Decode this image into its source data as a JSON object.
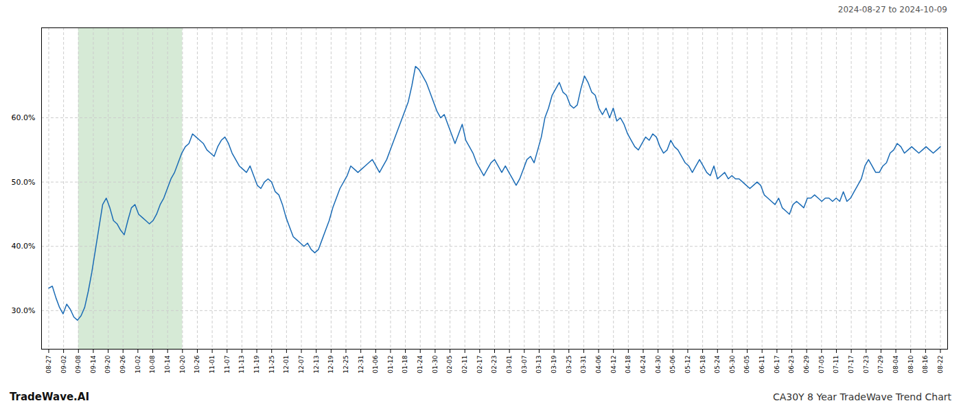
{
  "chart_data": {
    "type": "line",
    "title": "CA30Y 8 Year TradeWave Trend Chart",
    "subtitle": "2024-08-27 to 2024-10-09",
    "annotation": "TradeWave.AI",
    "color": "#1a6bb5",
    "grid": true,
    "highlight_range": [
      8.266666666666667,
      37.2
    ],
    "highlight_color": "#d6ead6",
    "xlim": [
      -2,
      250
    ],
    "xticks": [
      {
        "value": 0,
        "label": "08-27"
      },
      {
        "value": 4.133333333333333,
        "label": "09-02"
      },
      {
        "value": 8.266666666666667,
        "label": "09-08"
      },
      {
        "value": 12.4,
        "label": "09-14"
      },
      {
        "value": 16.53333333333333,
        "label": "09-20"
      },
      {
        "value": 20.666666666666668,
        "label": "09-26"
      },
      {
        "value": 24.8,
        "label": "10-02"
      },
      {
        "value": 28.933333333333334,
        "label": "10-08"
      },
      {
        "value": 33.06666666666667,
        "label": "10-14"
      },
      {
        "value": 37.2,
        "label": "10-20"
      },
      {
        "value": 41.333333333333336,
        "label": "10-26"
      },
      {
        "value": 45.46666666666667,
        "label": "11-01"
      },
      {
        "value": 49.6,
        "label": "11-07"
      },
      {
        "value": 53.733333333333334,
        "label": "11-13"
      },
      {
        "value": 57.86666666666667,
        "label": "11-19"
      },
      {
        "value": 62,
        "label": "11-25"
      },
      {
        "value": 66.13333333333334,
        "label": "12-01"
      },
      {
        "value": 70.26666666666667,
        "label": "12-07"
      },
      {
        "value": 74.4,
        "label": "12-13"
      },
      {
        "value": 78.53333333333333,
        "label": "12-19"
      },
      {
        "value": 82.66666666666667,
        "label": "12-25"
      },
      {
        "value": 86.8,
        "label": "12-31"
      },
      {
        "value": 90.93333333333334,
        "label": "01-06"
      },
      {
        "value": 95.06666666666666,
        "label": "01-12"
      },
      {
        "value": 99.2,
        "label": "01-18"
      },
      {
        "value": 103.33333333333333,
        "label": "01-24"
      },
      {
        "value": 107.46666666666667,
        "label": "01-30"
      },
      {
        "value": 111.6,
        "label": "02-05"
      },
      {
        "value": 115.73333333333333,
        "label": "02-11"
      },
      {
        "value": 119.86666666666667,
        "label": "02-17"
      },
      {
        "value": 124,
        "label": "02-23"
      },
      {
        "value": 128.13333333333333,
        "label": "03-01"
      },
      {
        "value": 132.26666666666668,
        "label": "03-07"
      },
      {
        "value": 136.4,
        "label": "03-13"
      },
      {
        "value": 140.53333333333333,
        "label": "03-19"
      },
      {
        "value": 144.66666666666666,
        "label": "03-25"
      },
      {
        "value": 148.8,
        "label": "03-31"
      },
      {
        "value": 152.93333333333334,
        "label": "04-06"
      },
      {
        "value": 157.06666666666666,
        "label": "04-12"
      },
      {
        "value": 161.2,
        "label": "04-18"
      },
      {
        "value": 165.33333333333334,
        "label": "04-24"
      },
      {
        "value": 169.46666666666667,
        "label": "04-30"
      },
      {
        "value": 173.6,
        "label": "05-06"
      },
      {
        "value": 177.73333333333332,
        "label": "05-12"
      },
      {
        "value": 181.86666666666667,
        "label": "05-18"
      },
      {
        "value": 186,
        "label": "05-24"
      },
      {
        "value": 190.13333333333333,
        "label": "05-30"
      },
      {
        "value": 194.26666666666668,
        "label": "06-05"
      },
      {
        "value": 198.4,
        "label": "06-11"
      },
      {
        "value": 202.53333333333333,
        "label": "06-17"
      },
      {
        "value": 206.66666666666666,
        "label": "06-23"
      },
      {
        "value": 210.8,
        "label": "06-29"
      },
      {
        "value": 214.93333333333334,
        "label": "07-05"
      },
      {
        "value": 219.06666666666666,
        "label": "07-11"
      },
      {
        "value": 223.2,
        "label": "07-17"
      },
      {
        "value": 227.33333333333334,
        "label": "07-23"
      },
      {
        "value": 231.46666666666667,
        "label": "07-29"
      },
      {
        "value": 235.6,
        "label": "08-04"
      },
      {
        "value": 239.73333333333332,
        "label": "08-10"
      },
      {
        "value": 243.86666666666667,
        "label": "08-16"
      },
      {
        "value": 248,
        "label": "08-22"
      }
    ],
    "ylim": [
      24.0,
      74.0
    ],
    "yticks": [
      {
        "value": 30.0,
        "label": "30.0%"
      },
      {
        "value": 40.0,
        "label": "40.0%"
      },
      {
        "value": 50.0,
        "label": "50.0%"
      },
      {
        "value": 60.0,
        "label": "60.0%"
      }
    ],
    "x": [
      0,
      1,
      2,
      3,
      4,
      5,
      6,
      7,
      8,
      9,
      10,
      11,
      12,
      13,
      14,
      15,
      16,
      17,
      18,
      19,
      20,
      21,
      22,
      23,
      24,
      25,
      26,
      27,
      28,
      29,
      30,
      31,
      32,
      33,
      34,
      35,
      36,
      37,
      38,
      39,
      40,
      41,
      42,
      43,
      44,
      45,
      46,
      47,
      48,
      49,
      50,
      51,
      52,
      53,
      54,
      55,
      56,
      57,
      58,
      59,
      60,
      61,
      62,
      63,
      64,
      65,
      66,
      67,
      68,
      69,
      70,
      71,
      72,
      73,
      74,
      75,
      76,
      77,
      78,
      79,
      80,
      81,
      82,
      83,
      84,
      85,
      86,
      87,
      88,
      89,
      90,
      91,
      92,
      93,
      94,
      95,
      96,
      97,
      98,
      99,
      100,
      101,
      102,
      103,
      104,
      105,
      106,
      107,
      108,
      109,
      110,
      111,
      112,
      113,
      114,
      115,
      116,
      117,
      118,
      119,
      120,
      121,
      122,
      123,
      124,
      125,
      126,
      127,
      128,
      129,
      130,
      131,
      132,
      133,
      134,
      135,
      136,
      137,
      138,
      139,
      140,
      141,
      142,
      143,
      144,
      145,
      146,
      147,
      148,
      149,
      150,
      151,
      152,
      153,
      154,
      155,
      156,
      157,
      158,
      159,
      160,
      161,
      162,
      163,
      164,
      165,
      166,
      167,
      168,
      169,
      170,
      171,
      172,
      173,
      174,
      175,
      176,
      177,
      178,
      179,
      180,
      181,
      182,
      183,
      184,
      185,
      186,
      187,
      188,
      189,
      190,
      191,
      192,
      193,
      194,
      195,
      196,
      197,
      198,
      199,
      200,
      201,
      202,
      203,
      204,
      205,
      206,
      207,
      208,
      209,
      210,
      211,
      212,
      213,
      214,
      215,
      216,
      217,
      218,
      219,
      220,
      221,
      222,
      223,
      224,
      225,
      226,
      227,
      228,
      229,
      230,
      231,
      232,
      233,
      234,
      235,
      236,
      237,
      238,
      239,
      240,
      241,
      242,
      243,
      244,
      245,
      246,
      247,
      248
    ],
    "values": [
      33.5,
      33.8,
      32.0,
      30.5,
      29.5,
      31.0,
      30.2,
      29.0,
      28.5,
      29.2,
      30.5,
      33.0,
      36.0,
      39.5,
      43.0,
      46.5,
      47.5,
      46.0,
      44.0,
      43.5,
      42.5,
      41.8,
      44.0,
      46.0,
      46.5,
      45.0,
      44.5,
      44.0,
      43.5,
      44.0,
      45.0,
      46.5,
      47.5,
      49.0,
      50.5,
      51.5,
      53.0,
      54.5,
      55.5,
      56.0,
      57.5,
      57.0,
      56.5,
      56.0,
      55.0,
      54.5,
      54.0,
      55.5,
      56.5,
      57.0,
      56.0,
      54.5,
      53.5,
      52.5,
      52.0,
      51.5,
      52.5,
      51.0,
      49.5,
      49.0,
      50.0,
      50.5,
      50.0,
      48.5,
      48.0,
      46.5,
      44.5,
      43.0,
      41.5,
      41.0,
      40.5,
      40.0,
      40.5,
      39.5,
      39.0,
      39.5,
      41.0,
      42.5,
      44.0,
      46.0,
      47.5,
      49.0,
      50.0,
      51.0,
      52.5,
      52.0,
      51.5,
      52.0,
      52.5,
      53.0,
      53.5,
      52.5,
      51.5,
      52.5,
      53.5,
      55.0,
      56.5,
      58.0,
      59.5,
      61.0,
      62.5,
      65.0,
      68.0,
      67.5,
      66.5,
      65.5,
      64.0,
      62.5,
      61.0,
      60.0,
      60.5,
      59.0,
      57.5,
      56.0,
      57.5,
      59.0,
      56.5,
      55.5,
      54.5,
      53.0,
      52.0,
      51.0,
      52.0,
      53.0,
      53.5,
      52.5,
      51.5,
      52.5,
      51.5,
      50.5,
      49.5,
      50.5,
      52.0,
      53.5,
      54.0,
      53.0,
      55.0,
      57.0,
      60.0,
      61.5,
      63.5,
      64.5,
      65.5,
      64.0,
      63.5,
      62.0,
      61.5,
      62.0,
      64.5,
      66.5,
      65.5,
      64.0,
      63.5,
      61.5,
      60.5,
      61.5,
      60.0,
      61.5,
      59.5,
      60.0,
      59.0,
      57.5,
      56.5,
      55.5,
      55.0,
      56.0,
      57.0,
      56.5,
      57.5,
      57.0,
      55.5,
      54.5,
      55.0,
      56.5,
      55.5,
      55.0,
      54.0,
      53.0,
      52.5,
      51.5,
      52.5,
      53.5,
      52.5,
      51.5,
      51.0,
      52.5,
      50.5,
      51.0,
      51.5,
      50.5,
      51.0,
      50.5,
      50.5,
      50.0,
      49.5,
      49.0,
      49.5,
      50.0,
      49.5,
      48.0,
      47.5,
      47.0,
      46.5,
      47.5,
      46.0,
      45.5,
      45.0,
      46.5,
      47.0,
      46.5,
      46.0,
      47.5,
      47.5,
      48.0,
      47.5,
      47.0,
      47.5,
      47.5,
      47.0,
      47.5,
      47.0,
      48.5,
      47.0,
      47.5,
      48.5,
      49.5,
      50.5,
      52.5,
      53.5,
      52.5,
      51.5,
      51.5,
      52.5,
      53.0,
      54.5,
      55.0,
      56.0,
      55.5,
      54.5,
      55.0,
      55.5,
      55.0,
      54.5,
      55.0,
      55.5,
      55.0,
      54.5,
      55.0,
      55.5
    ]
  }
}
